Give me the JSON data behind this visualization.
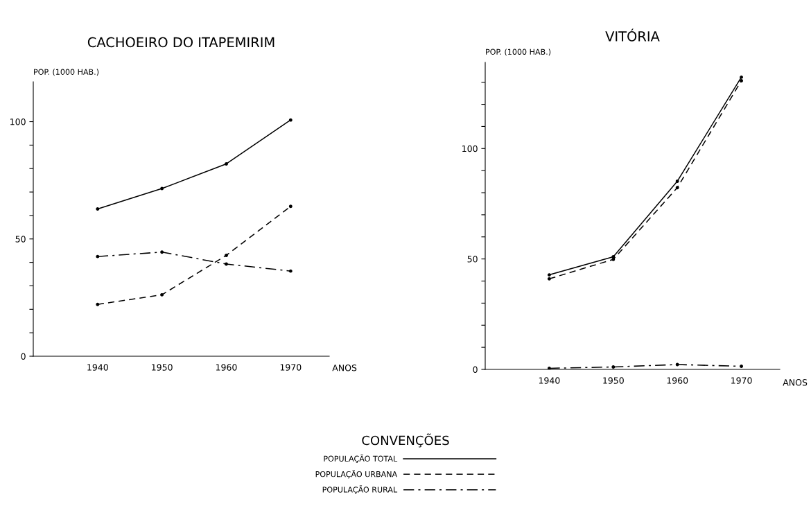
{
  "chart_data": [
    {
      "type": "line",
      "title": "CACHOEIRO DO ITAPEMIRIM",
      "ylabel": "POP. (1000 HAB.)",
      "xlabel": "ANOS",
      "legend_title": "CONVENÇÕES",
      "legend": "bottom",
      "marker": "circle",
      "grid": false,
      "x": [
        1940,
        1950,
        1960,
        1970
      ],
      "xlim": [
        1930,
        1976
      ],
      "xticks": [
        1940,
        1950,
        1960,
        1970
      ],
      "ylim": [
        0,
        117
      ],
      "yticks": [
        0,
        {
          "value": 10,
          "label": null
        },
        {
          "value": 20,
          "label": null
        },
        {
          "value": 30,
          "label": null
        },
        {
          "value": 40,
          "label": null
        },
        50,
        {
          "value": 60,
          "label": null
        },
        {
          "value": 70,
          "label": null
        },
        {
          "value": 80,
          "label": null
        },
        {
          "value": 90,
          "label": null
        },
        100
      ],
      "series": [
        {
          "name": "POPULAÇÃO TOTAL",
          "color": "#000000",
          "line_style": "solid",
          "values": [
            62.8,
            71.5,
            82,
            100.7
          ]
        },
        {
          "name": "POPULAÇÃO URBANA",
          "color": "#000000",
          "line_style": "dashed",
          "values": [
            22.1,
            26.2,
            43,
            63.9
          ]
        },
        {
          "name": "POPULAÇÃO RURAL",
          "color": "#000000",
          "line_style": "dashdot",
          "values": [
            42.5,
            44.4,
            39.3,
            36.3
          ]
        }
      ]
    },
    {
      "type": "line",
      "title": "VITÓRIA",
      "ylabel": "POP. (1000 HAB.)",
      "xlabel": "ANOS",
      "marker": "circle",
      "grid": false,
      "x": [
        1940,
        1950,
        1960,
        1970
      ],
      "xlim": [
        1930,
        1976
      ],
      "xticks": [
        1940,
        1950,
        1960,
        1970
      ],
      "ylim": [
        0,
        139
      ],
      "yticks": [
        0,
        {
          "value": 10,
          "label": null
        },
        {
          "value": 20,
          "label": null
        },
        {
          "value": 30,
          "label": null
        },
        {
          "value": 40,
          "label": null
        },
        50,
        {
          "value": 60,
          "label": null
        },
        {
          "value": 70,
          "label": null
        },
        {
          "value": 80,
          "label": null
        },
        {
          "value": 90,
          "label": null
        },
        100,
        {
          "value": 110,
          "label": null
        },
        {
          "value": 120,
          "label": null
        },
        {
          "value": 130,
          "label": null
        }
      ],
      "series": [
        {
          "color": "#000000",
          "line_style": "solid",
          "values": [
            42.8,
            51,
            85.2,
            132.3
          ]
        },
        {
          "color": "#000000",
          "line_style": "dashed",
          "values": [
            41,
            49.8,
            82.3,
            130.7
          ]
        },
        {
          "color": "#000000",
          "line_style": "dashdot",
          "values": [
            0.5,
            1.1,
            2.2,
            1.4
          ]
        }
      ]
    }
  ]
}
